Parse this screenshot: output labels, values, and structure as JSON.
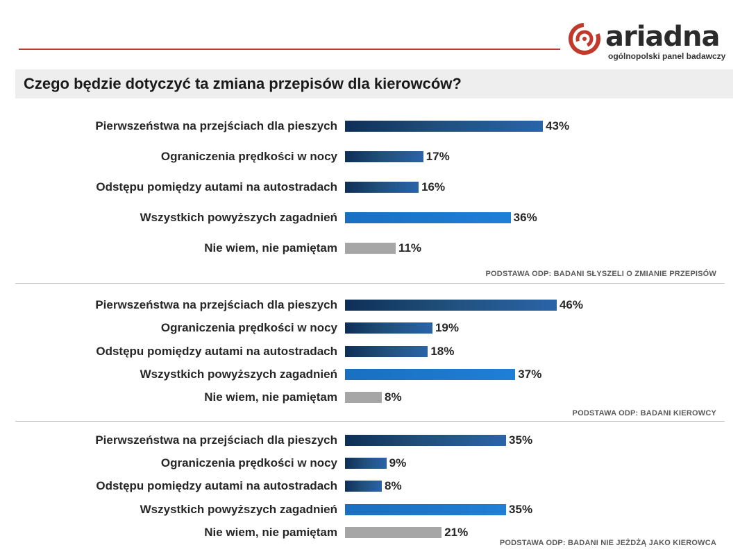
{
  "header": {
    "logo_text": "ariadna",
    "logo_tagline": "ogólnopolski panel badawczy",
    "title": "Czego będzie dotyczyć ta zmiana przepisów dla kierowców?"
  },
  "colors": {
    "dark_blue": "#1f4e79",
    "medium_blue": "#1f77c9",
    "grey": "#a6a6a6",
    "accent_red": "#c0392b"
  },
  "chart_data": [
    {
      "type": "bar",
      "orientation": "horizontal",
      "categories": [
        "Pierwszeństwa na przejściach dla pieszych",
        "Ograniczenia prędkości w nocy",
        "Odstępu pomiędzy autami na autostradach",
        "Wszystkich powyższych zagadnień",
        "Nie wiem, nie pamiętam"
      ],
      "values": [
        43,
        17,
        16,
        36,
        11
      ],
      "value_labels": [
        "43%",
        "17%",
        "16%",
        "36%",
        "11%"
      ],
      "note": "PODSTAWA ODP: BADANI SŁYSZELI O ZMIANIE PRZEPISÓW",
      "unit": "%"
    },
    {
      "type": "bar",
      "orientation": "horizontal",
      "categories": [
        "Pierwszeństwa na przejściach dla pieszych",
        "Ograniczenia prędkości w nocy",
        "Odstępu pomiędzy autami na autostradach",
        "Wszystkich powyższych zagadnień",
        "Nie wiem, nie pamiętam"
      ],
      "values": [
        46,
        19,
        18,
        37,
        8
      ],
      "value_labels": [
        "46%",
        "19%",
        "18%",
        "37%",
        "8%"
      ],
      "note": "PODSTAWA ODP: BADANI KIEROWCY",
      "unit": "%"
    },
    {
      "type": "bar",
      "orientation": "horizontal",
      "categories": [
        "Pierwszeństwa na przejściach dla pieszych",
        "Ograniczenia prędkości w nocy",
        "Odstępu pomiędzy autami na autostradach",
        "Wszystkich powyższych zagadnień",
        "Nie wiem, nie pamiętam"
      ],
      "values": [
        35,
        9,
        8,
        35,
        21
      ],
      "value_labels": [
        "35%",
        "9%",
        "8%",
        "35%",
        "21%"
      ],
      "note": "PODSTAWA ODP: BADANI NIE JEŻDŻĄ JAKO KIEROWCA",
      "unit": "%"
    }
  ]
}
